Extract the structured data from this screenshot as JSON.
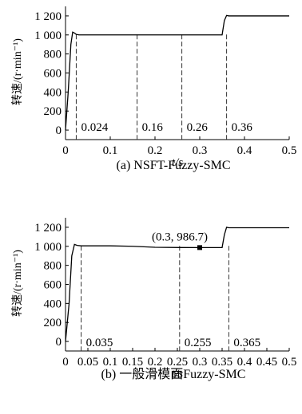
{
  "chart_data": [
    {
      "type": "line",
      "caption": "(a) NSFT-Fuzzy-SMC",
      "ylabel": "转速/(r·min⁻¹)",
      "xlabel": "t/s",
      "xlim": [
        0,
        0.5
      ],
      "ylim": [
        -100,
        1300
      ],
      "x_ticks": [
        0,
        0.1,
        0.2,
        0.3,
        0.4,
        0.5
      ],
      "x_tick_labels": [
        "0",
        "0.1",
        "0.2",
        "0.3",
        "0.4",
        "0.5"
      ],
      "y_ticks": [
        0,
        200,
        400,
        600,
        800,
        1000,
        1200
      ],
      "y_tick_labels": [
        "0",
        "200",
        "400",
        "600",
        "800",
        "1 000",
        "1 200"
      ],
      "series": [
        {
          "x": [
            0,
            0.006,
            0.012,
            0.016,
            0.02,
            0.024,
            0.03,
            0.1,
            0.2,
            0.26,
            0.265,
            0.3,
            0.35,
            0.355,
            0.36,
            0.365,
            0.4,
            0.5
          ],
          "y": [
            0,
            400,
            900,
            1030,
            1020,
            1005,
            1000,
            1000,
            1000,
            1000,
            1000,
            1000,
            1000,
            1150,
            1205,
            1200,
            1200,
            1200
          ]
        }
      ],
      "vlines": [
        0.024,
        0.16,
        0.26,
        0.36
      ],
      "annotations": [
        "0.024",
        "0.16",
        "0.26",
        "0.36"
      ],
      "grid": false
    },
    {
      "type": "line",
      "caption": "(b) 一般滑模面Fuzzy-SMC",
      "ylabel": "转速/(r·min⁻¹)",
      "xlabel": "t/s",
      "xlim": [
        0,
        0.5
      ],
      "ylim": [
        -100,
        1300
      ],
      "x_ticks": [
        0,
        0.05,
        0.1,
        0.15,
        0.2,
        0.25,
        0.3,
        0.35,
        0.4,
        0.45,
        0.5
      ],
      "x_tick_labels": [
        "0",
        "0.05",
        "0.1",
        "0.15",
        "0.2",
        "0.25",
        "0.3",
        "0.35",
        "0.4",
        "0.45",
        "0.5"
      ],
      "y_ticks": [
        0,
        200,
        400,
        600,
        800,
        1000,
        1200
      ],
      "y_tick_labels": [
        "0",
        "200",
        "400",
        "600",
        "800",
        "1 000",
        "1 200"
      ],
      "series": [
        {
          "x": [
            0,
            0.008,
            0.014,
            0.02,
            0.026,
            0.035,
            0.1,
            0.15,
            0.2,
            0.255,
            0.3,
            0.35,
            0.355,
            0.36,
            0.365,
            0.4,
            0.5
          ],
          "y": [
            0,
            400,
            900,
            1020,
            1010,
            1005,
            1005,
            1000,
            990,
            987,
            986.7,
            987,
            1120,
            1200,
            1195,
            1195,
            1195
          ]
        }
      ],
      "vlines": [
        0.035,
        0.255,
        0.365
      ],
      "annotations": [
        "0.035",
        "0.255",
        "0.365"
      ],
      "marker": {
        "x": 0.3,
        "y": 986.7,
        "label": "(0.3, 986.7)"
      },
      "grid": false
    }
  ]
}
